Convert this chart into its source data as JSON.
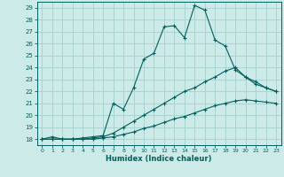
{
  "title": "",
  "xlabel": "Humidex (Indice chaleur)",
  "ylabel": "",
  "bg_color": "#cceae7",
  "grid_color": "#aad4d0",
  "line_color": "#006060",
  "xlim": [
    -0.5,
    23.5
  ],
  "ylim": [
    17.5,
    29.5
  ],
  "yticks": [
    18,
    19,
    20,
    21,
    22,
    23,
    24,
    25,
    26,
    27,
    28,
    29
  ],
  "xticks": [
    0,
    1,
    2,
    3,
    4,
    5,
    6,
    7,
    8,
    9,
    10,
    11,
    12,
    13,
    14,
    15,
    16,
    17,
    18,
    19,
    20,
    21,
    22,
    23
  ],
  "line1_x": [
    0,
    1,
    2,
    3,
    4,
    5,
    6,
    7,
    8,
    9,
    10,
    11,
    12,
    13,
    14,
    15,
    16,
    17,
    18,
    19,
    20,
    21,
    22,
    23
  ],
  "line1_y": [
    18.0,
    18.2,
    18.0,
    18.0,
    18.1,
    18.2,
    18.3,
    21.0,
    20.5,
    22.3,
    24.7,
    25.2,
    27.4,
    27.5,
    26.5,
    29.2,
    28.8,
    26.3,
    25.8,
    23.8,
    23.2,
    22.6,
    22.3,
    22.0
  ],
  "line2_x": [
    0,
    1,
    2,
    3,
    4,
    5,
    6,
    7,
    8,
    9,
    10,
    11,
    12,
    13,
    14,
    15,
    16,
    17,
    18,
    19,
    20,
    21,
    22,
    23
  ],
  "line2_y": [
    18.0,
    18.0,
    18.0,
    18.0,
    18.0,
    18.1,
    18.2,
    18.5,
    19.0,
    19.5,
    20.0,
    20.5,
    21.0,
    21.5,
    22.0,
    22.3,
    22.8,
    23.2,
    23.7,
    24.0,
    23.2,
    22.8,
    22.3,
    22.0
  ],
  "line3_x": [
    0,
    1,
    2,
    3,
    4,
    5,
    6,
    7,
    8,
    9,
    10,
    11,
    12,
    13,
    14,
    15,
    16,
    17,
    18,
    19,
    20,
    21,
    22,
    23
  ],
  "line3_y": [
    18.0,
    18.0,
    18.0,
    18.0,
    18.0,
    18.0,
    18.1,
    18.2,
    18.4,
    18.6,
    18.9,
    19.1,
    19.4,
    19.7,
    19.9,
    20.2,
    20.5,
    20.8,
    21.0,
    21.2,
    21.3,
    21.2,
    21.1,
    21.0
  ]
}
